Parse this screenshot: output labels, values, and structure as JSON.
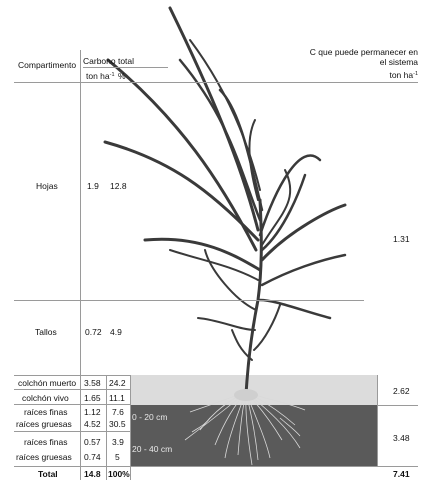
{
  "header": {
    "compartment_label": "Compartimento",
    "carbon_label": "Carbono total",
    "unit_ton": "ton ha",
    "unit_exp": "-1",
    "unit_pct": "%",
    "remain_label_line1": "C que puede permanecer en",
    "remain_label_line2": "el sistema",
    "remain_unit": "ton ha",
    "remain_unit_exp": "-1"
  },
  "rows": [
    {
      "name": "Hojas",
      "ton": "1.9",
      "pct": "12.8"
    },
    {
      "name": "Tallos",
      "ton": "0.72",
      "pct": "4.9"
    },
    {
      "name": "colchón muerto",
      "ton": "3.58",
      "pct": "24.2"
    },
    {
      "name": "colchón vivo",
      "ton": "1.65",
      "pct": "11.1"
    },
    {
      "name": "raíces finas",
      "ton": "1.12",
      "pct": "7.6"
    },
    {
      "name": "raíces gruesas",
      "ton": "4.52",
      "pct": "30.5"
    },
    {
      "name": "raíces finas",
      "ton": "0.57",
      "pct": "3.9"
    },
    {
      "name": "raíces gruesas",
      "ton": "0.74",
      "pct": "5"
    }
  ],
  "total": {
    "label": "Total",
    "ton": "14.8",
    "pct": "100%",
    "remain": "7.41"
  },
  "remain_values": {
    "aerial": "1.31",
    "mulch": "2.62",
    "roots": "3.48"
  },
  "depth_labels": {
    "upper": "0 - 20 cm",
    "lower": "20 - 40 cm"
  },
  "colors": {
    "mulch_band": "#dcdcdc",
    "soil_band": "#5a5a5a",
    "plant": "#3a3a3a"
  }
}
